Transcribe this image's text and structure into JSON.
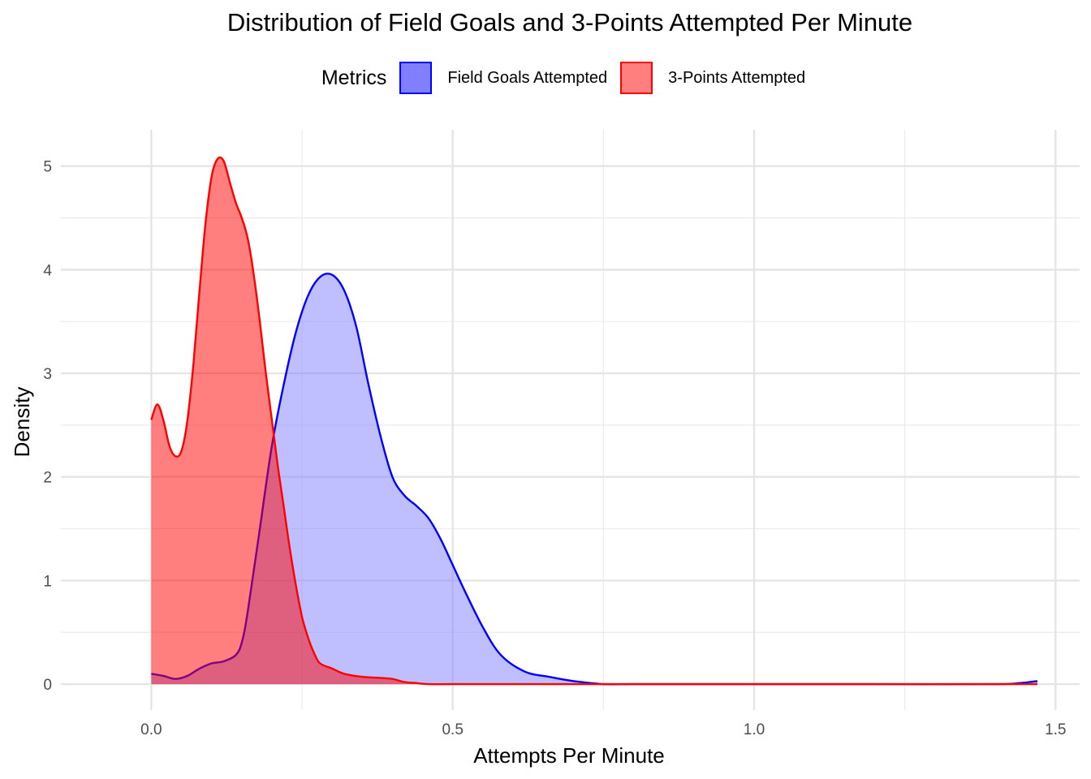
{
  "chart_data": {
    "type": "area",
    "title": "Distribution of Field Goals and 3-Points Attempted Per Minute",
    "xlabel": "Attempts Per Minute",
    "ylabel": "Density",
    "xlim": [
      -0.15,
      1.54
    ],
    "ylim": [
      -0.25,
      5.35
    ],
    "x_ticks": [
      0.0,
      0.5,
      1.0,
      1.5
    ],
    "x_tick_labels": [
      "0.0",
      "0.5",
      "1.0",
      "1.5"
    ],
    "y_ticks": [
      0,
      1,
      2,
      3,
      4,
      5
    ],
    "y_tick_labels": [
      "0",
      "1",
      "2",
      "3",
      "4",
      "5"
    ],
    "grid": true,
    "legend": {
      "title": "Metrics",
      "placement": "top"
    },
    "series": [
      {
        "name": "Field Goals Attempted",
        "color": "#0000FF",
        "fill": "#8080FF",
        "x": [
          0.0,
          0.02,
          0.04,
          0.06,
          0.08,
          0.1,
          0.12,
          0.14,
          0.15,
          0.16,
          0.18,
          0.2,
          0.22,
          0.24,
          0.26,
          0.28,
          0.3,
          0.32,
          0.34,
          0.36,
          0.38,
          0.4,
          0.42,
          0.44,
          0.46,
          0.48,
          0.5,
          0.52,
          0.55,
          0.58,
          0.62,
          0.66,
          0.7,
          0.75,
          0.8,
          1.0,
          1.2,
          1.4,
          1.44,
          1.47
        ],
        "y": [
          0.1,
          0.08,
          0.05,
          0.08,
          0.15,
          0.2,
          0.22,
          0.28,
          0.4,
          0.7,
          1.5,
          2.3,
          2.9,
          3.4,
          3.75,
          3.93,
          3.95,
          3.8,
          3.45,
          2.9,
          2.4,
          2.0,
          1.82,
          1.72,
          1.6,
          1.4,
          1.15,
          0.9,
          0.55,
          0.28,
          0.12,
          0.07,
          0.03,
          0.0,
          0.0,
          0.0,
          0.0,
          0.0,
          0.01,
          0.03
        ]
      },
      {
        "name": "3-Points Attempted",
        "color": "#FF0000",
        "fill": "#FF0000",
        "x": [
          0.0,
          0.01,
          0.02,
          0.03,
          0.04,
          0.05,
          0.06,
          0.07,
          0.08,
          0.09,
          0.1,
          0.11,
          0.12,
          0.13,
          0.14,
          0.15,
          0.16,
          0.17,
          0.18,
          0.19,
          0.2,
          0.21,
          0.22,
          0.23,
          0.24,
          0.25,
          0.26,
          0.27,
          0.28,
          0.3,
          0.32,
          0.35,
          0.38,
          0.4,
          0.42,
          0.44,
          0.46,
          0.5,
          0.6,
          0.8,
          1.0,
          1.2,
          1.47
        ],
        "y": [
          2.55,
          2.7,
          2.55,
          2.3,
          2.2,
          2.25,
          2.55,
          3.1,
          3.8,
          4.45,
          4.9,
          5.07,
          5.05,
          4.85,
          4.65,
          4.5,
          4.3,
          3.95,
          3.5,
          3.0,
          2.55,
          2.1,
          1.7,
          1.3,
          0.95,
          0.65,
          0.45,
          0.3,
          0.2,
          0.15,
          0.1,
          0.07,
          0.06,
          0.05,
          0.02,
          0.01,
          0.0,
          0.0,
          0.0,
          0.0,
          0.0,
          0.0,
          0.0
        ]
      }
    ]
  }
}
